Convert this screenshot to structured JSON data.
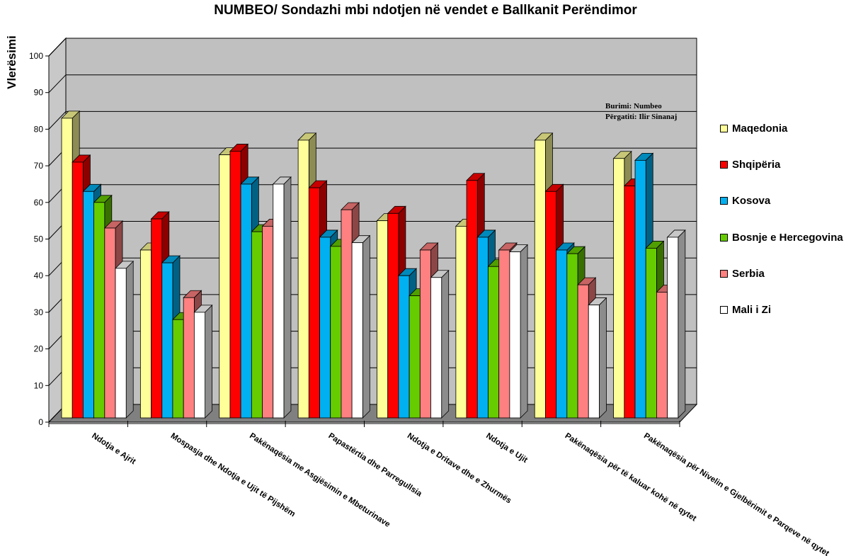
{
  "chart_data": {
    "type": "bar",
    "title": "NUMBEO/ Sondazhi mbi ndotjen në vendet e Ballkanit Perëndimor",
    "ylabel": "Vlerësimi",
    "xlabel": "",
    "ylim": [
      0,
      100
    ],
    "yticks": [
      "0",
      "10",
      "20",
      "30",
      "40",
      "50",
      "60",
      "70",
      "80",
      "90",
      "100"
    ],
    "grid": true,
    "legend_position": "right",
    "categories": [
      "Ndotja e Ajrit",
      "Mospasja dhe Ndotja e Ujit të Pijshëm",
      "Pakënaqësia me Asgjësimin e Mbeturinave",
      "Papastërtia dhe Parregullsia",
      "Ndotja e Dritave dhe e Zhurmës",
      "Ndotja e Ujit",
      "Pakënaqësia për të kaluar kohë në qytet",
      "Pakënaqësia për Nivelin e Gjelbërimit e Parqeve në qytet"
    ],
    "series": [
      {
        "name": "Maqedonia",
        "color": "#ffff99",
        "values": [
          83,
          47,
          73,
          77,
          55,
          53.5,
          77,
          72
        ]
      },
      {
        "name": "Shqipëria",
        "color": "#ff0000",
        "values": [
          71,
          55.5,
          74,
          64,
          57,
          66,
          63,
          64.5
        ]
      },
      {
        "name": "Kosova",
        "color": "#00b0f0",
        "values": [
          63,
          43.5,
          65,
          50.5,
          40,
          50.5,
          47,
          71.5
        ]
      },
      {
        "name": "Bosnje e Hercegovina",
        "color": "#66cc00",
        "values": [
          60,
          28,
          52,
          48,
          34.5,
          42.5,
          46,
          47.5
        ]
      },
      {
        "name": "Serbia",
        "color": "#ff8080",
        "values": [
          53,
          34,
          53.5,
          58,
          47,
          47,
          37.5,
          35.5
        ]
      },
      {
        "name": "Mali i Zi",
        "color": "#ffffff",
        "values": [
          42,
          30,
          65,
          49,
          39.5,
          46.5,
          32,
          50.5
        ]
      }
    ],
    "annotations": [
      "Burimi: Numbeo",
      "Përgatiti: Ilir Sinanaj"
    ]
  }
}
